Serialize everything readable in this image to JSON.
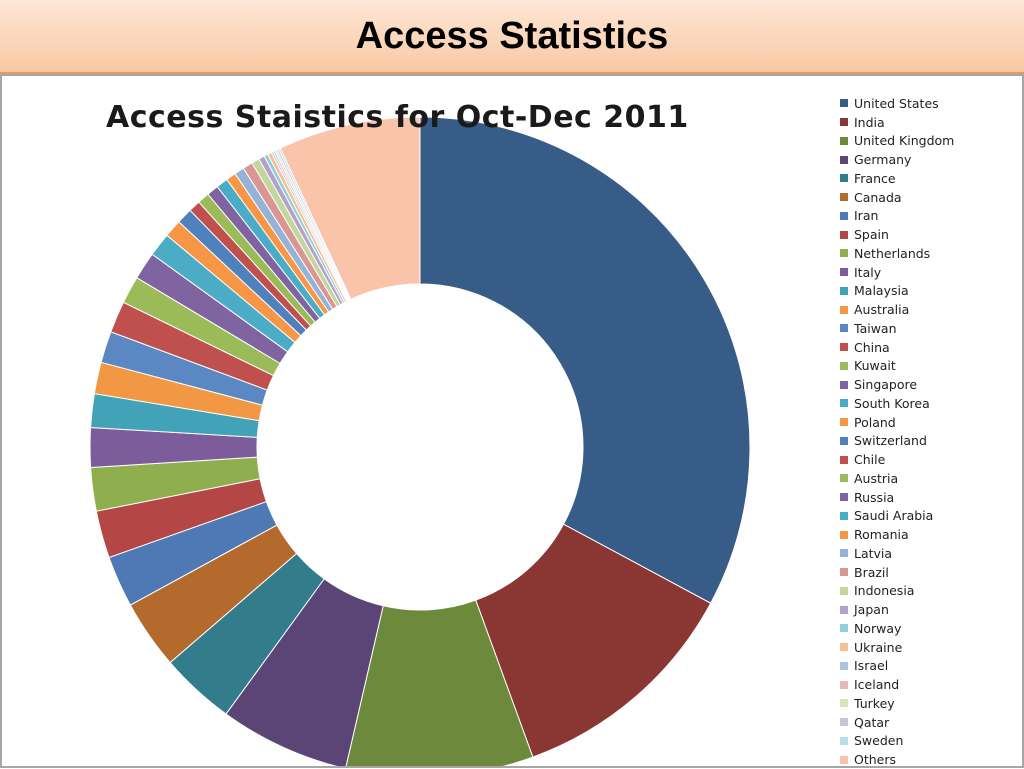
{
  "header": {
    "title": "Access Statistics"
  },
  "chart_data": {
    "type": "donut",
    "title": "Access Staistics for Oct-Dec 2011",
    "unit": "percent of accesses (estimated)",
    "legend_position": "right",
    "categories": [
      "United States",
      "India",
      "United Kingdom",
      "Germany",
      "France",
      "Canada",
      "Iran",
      "Spain",
      "Netherlands",
      "Italy",
      "Malaysia",
      "Australia",
      "Taiwan",
      "China",
      "Kuwait",
      "Singapore",
      "South Korea",
      "Poland",
      "Switzerland",
      "Chile",
      "Austria",
      "Russia",
      "Saudi Arabia",
      "Romania",
      "Latvia",
      "Brazil",
      "Indonesia",
      "Japan",
      "Norway",
      "Ukraine",
      "Israel",
      "Iceland",
      "Turkey",
      "Qatar",
      "Sweden",
      "Others"
    ],
    "values": [
      34.0,
      12.0,
      9.5,
      6.6,
      3.8,
      3.5,
      2.6,
      2.4,
      2.2,
      2.0,
      1.7,
      1.6,
      1.6,
      1.6,
      1.4,
      1.4,
      1.2,
      0.9,
      0.8,
      0.6,
      0.6,
      0.6,
      0.6,
      0.5,
      0.5,
      0.5,
      0.4,
      0.3,
      0.2,
      0.2,
      0.1,
      0.1,
      0.1,
      0.1,
      0.1,
      7.2
    ],
    "colors": [
      "#375c87",
      "#8a3633",
      "#6d8a3c",
      "#5b4577",
      "#337c8c",
      "#b56a2d",
      "#4f79b4",
      "#b44746",
      "#8faf4f",
      "#7d5c9c",
      "#42a2b8",
      "#f29844",
      "#5b88c3",
      "#c0504d",
      "#9bbb59",
      "#8064a2",
      "#4bacc6",
      "#f79646",
      "#4f81bd",
      "#c0504d",
      "#9bbb59",
      "#8064a2",
      "#4bacc6",
      "#f79646",
      "#95b3d7",
      "#d99694",
      "#c3d69b",
      "#b3a2c7",
      "#93cddd",
      "#fac08f",
      "#a9c4e3",
      "#e6b9b8",
      "#d7e4bc",
      "#ccc1da",
      "#b7dee8",
      "#f9c4aa"
    ]
  }
}
